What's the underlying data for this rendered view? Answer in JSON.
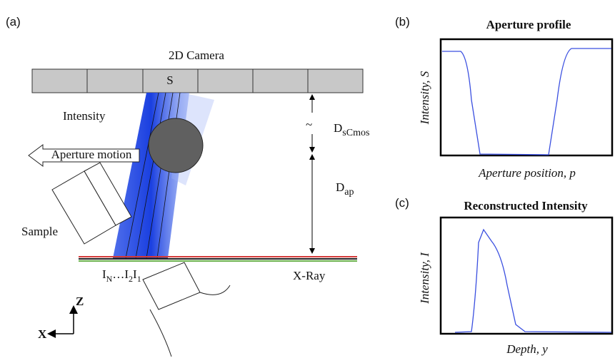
{
  "panel_a": {
    "label": "(a)",
    "camera": "2D Camera",
    "pixel": "S",
    "beam": "Intensity",
    "motion": "Aperture motion",
    "sample": "Sample",
    "xray": "X-Ray",
    "tilde": "~",
    "d_scmos": {
      "main": "D",
      "sub": "sCmos"
    },
    "d_ap": {
      "main": "D",
      "sub": "ap"
    },
    "intensities": [
      {
        "main": "I",
        "sub": "N"
      },
      {
        "main": "…I",
        "sub": "2"
      },
      {
        "main": "I",
        "sub": "1"
      }
    ],
    "axis_z": "Z",
    "axis_x": "X"
  },
  "panel_b": {
    "label": "(b)",
    "title": "Aperture profile",
    "y_label": "Intensity, S",
    "x_label": "Aperture position, p"
  },
  "panel_c": {
    "label": "(c)",
    "title": "Reconstructed Intensity",
    "y_label": "Intensity, I",
    "x_label": "Depth, y"
  }
}
